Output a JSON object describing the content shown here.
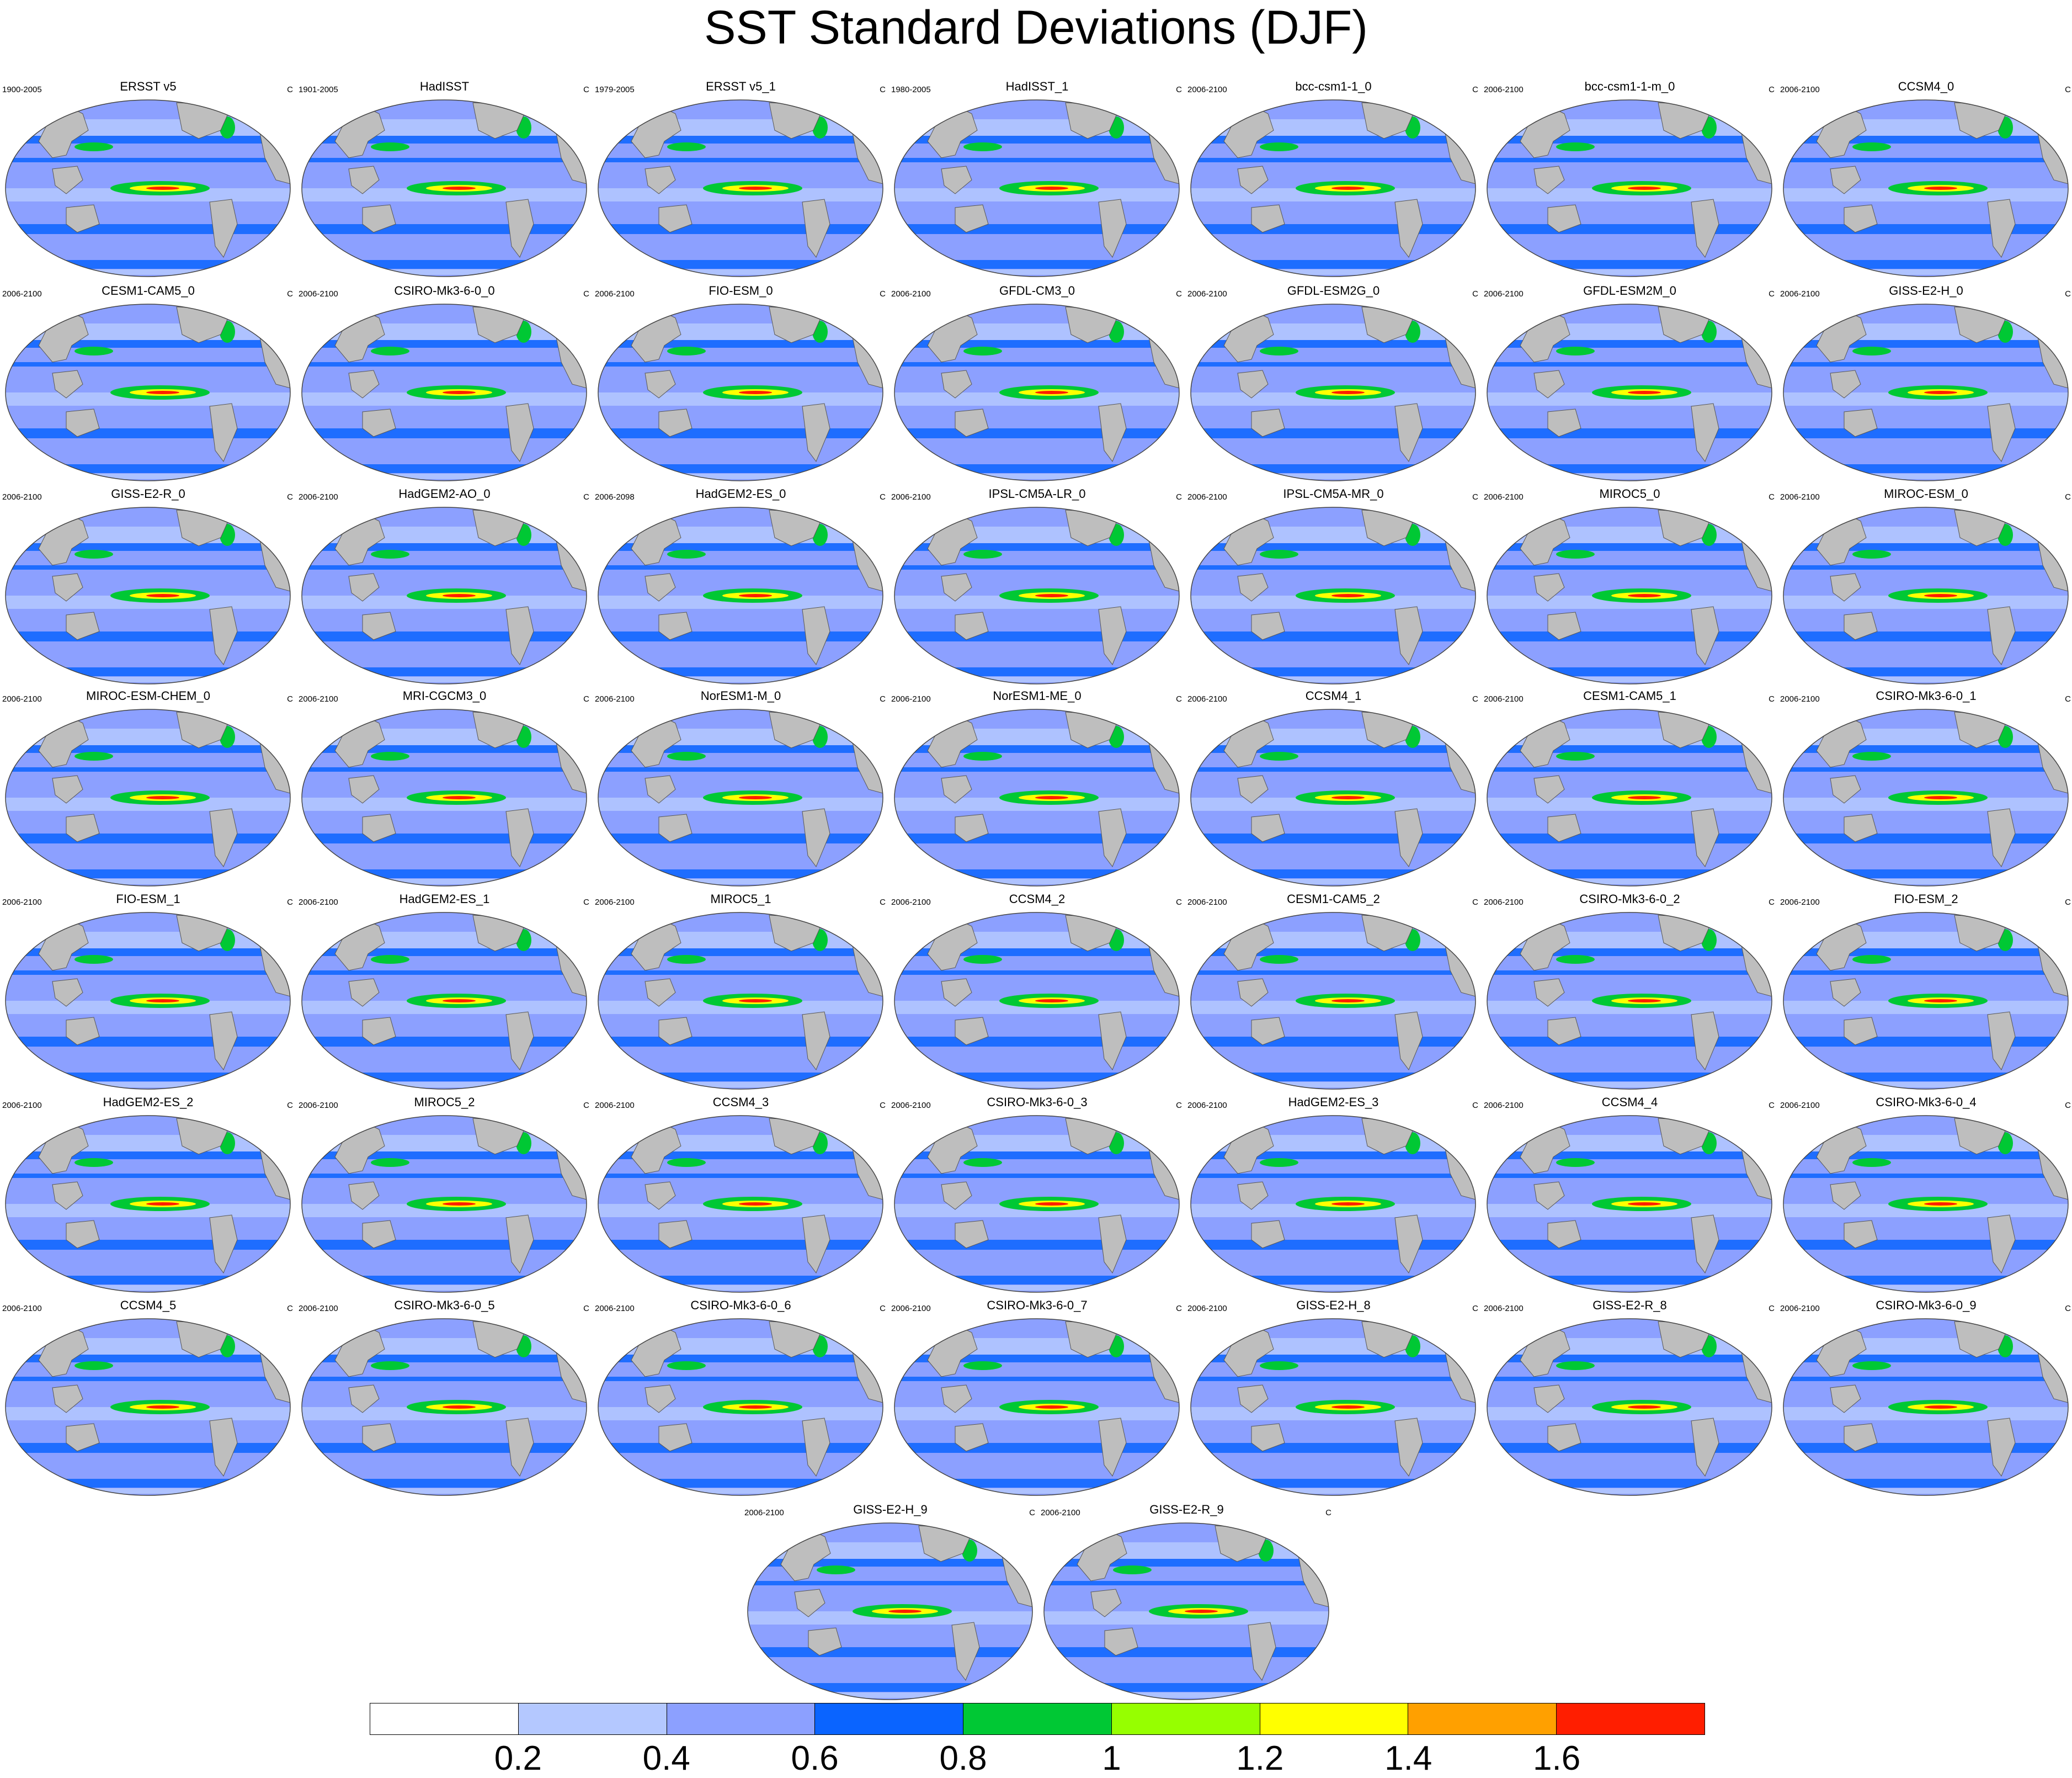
{
  "title": "SST Standard Deviations (DJF)",
  "unit_label": "C",
  "colorbar": {
    "colors": [
      "#ffffff",
      "#b4c8ff",
      "#8ca0ff",
      "#0a64ff",
      "#00c834",
      "#96ff00",
      "#ffff00",
      "#ffa000",
      "#ff1e00"
    ],
    "ticks": [
      "0.2",
      "0.4",
      "0.6",
      "0.8",
      "1",
      "1.2",
      "1.4",
      "1.6"
    ]
  },
  "panels": [
    {
      "name": "ERSST v5",
      "period": "1900-2005"
    },
    {
      "name": "HadISST",
      "period": "1901-2005"
    },
    {
      "name": "ERSST v5_1",
      "period": "1979-2005"
    },
    {
      "name": "HadISST_1",
      "period": "1980-2005"
    },
    {
      "name": "bcc-csm1-1_0",
      "period": "2006-2100"
    },
    {
      "name": "bcc-csm1-1-m_0",
      "period": "2006-2100"
    },
    {
      "name": "CCSM4_0",
      "period": "2006-2100"
    },
    {
      "name": "CESM1-CAM5_0",
      "period": "2006-2100"
    },
    {
      "name": "CSIRO-Mk3-6-0_0",
      "period": "2006-2100"
    },
    {
      "name": "FIO-ESM_0",
      "period": "2006-2100"
    },
    {
      "name": "GFDL-CM3_0",
      "period": "2006-2100"
    },
    {
      "name": "GFDL-ESM2G_0",
      "period": "2006-2100"
    },
    {
      "name": "GFDL-ESM2M_0",
      "period": "2006-2100"
    },
    {
      "name": "GISS-E2-H_0",
      "period": "2006-2100"
    },
    {
      "name": "GISS-E2-R_0",
      "period": "2006-2100"
    },
    {
      "name": "HadGEM2-AO_0",
      "period": "2006-2100"
    },
    {
      "name": "HadGEM2-ES_0",
      "period": "2006-2098"
    },
    {
      "name": "IPSL-CM5A-LR_0",
      "period": "2006-2100"
    },
    {
      "name": "IPSL-CM5A-MR_0",
      "period": "2006-2100"
    },
    {
      "name": "MIROC5_0",
      "period": "2006-2100"
    },
    {
      "name": "MIROC-ESM_0",
      "period": "2006-2100"
    },
    {
      "name": "MIROC-ESM-CHEM_0",
      "period": "2006-2100"
    },
    {
      "name": "MRI-CGCM3_0",
      "period": "2006-2100"
    },
    {
      "name": "NorESM1-M_0",
      "period": "2006-2100"
    },
    {
      "name": "NorESM1-ME_0",
      "period": "2006-2100"
    },
    {
      "name": "CCSM4_1",
      "period": "2006-2100"
    },
    {
      "name": "CESM1-CAM5_1",
      "period": "2006-2100"
    },
    {
      "name": "CSIRO-Mk3-6-0_1",
      "period": "2006-2100"
    },
    {
      "name": "FIO-ESM_1",
      "period": "2006-2100"
    },
    {
      "name": "HadGEM2-ES_1",
      "period": "2006-2100"
    },
    {
      "name": "MIROC5_1",
      "period": "2006-2100"
    },
    {
      "name": "CCSM4_2",
      "period": "2006-2100"
    },
    {
      "name": "CESM1-CAM5_2",
      "period": "2006-2100"
    },
    {
      "name": "CSIRO-Mk3-6-0_2",
      "period": "2006-2100"
    },
    {
      "name": "FIO-ESM_2",
      "period": "2006-2100"
    },
    {
      "name": "HadGEM2-ES_2",
      "period": "2006-2100"
    },
    {
      "name": "MIROC5_2",
      "period": "2006-2100"
    },
    {
      "name": "CCSM4_3",
      "period": "2006-2100"
    },
    {
      "name": "CSIRO-Mk3-6-0_3",
      "period": "2006-2100"
    },
    {
      "name": "HadGEM2-ES_3",
      "period": "2006-2100"
    },
    {
      "name": "CCSM4_4",
      "period": "2006-2100"
    },
    {
      "name": "CSIRO-Mk3-6-0_4",
      "period": "2006-2100"
    },
    {
      "name": "CCSM4_5",
      "period": "2006-2100"
    },
    {
      "name": "CSIRO-Mk3-6-0_5",
      "period": "2006-2100"
    },
    {
      "name": "CSIRO-Mk3-6-0_6",
      "period": "2006-2100"
    },
    {
      "name": "CSIRO-Mk3-6-0_7",
      "period": "2006-2100"
    },
    {
      "name": "GISS-E2-H_8",
      "period": "2006-2100"
    },
    {
      "name": "GISS-E2-R_8",
      "period": "2006-2100"
    },
    {
      "name": "CSIRO-Mk3-6-0_9",
      "period": "2006-2100"
    },
    {
      "name": "GISS-E2-H_9",
      "period": "2006-2100"
    },
    {
      "name": "GISS-E2-R_9",
      "period": "2006-2100"
    }
  ]
}
